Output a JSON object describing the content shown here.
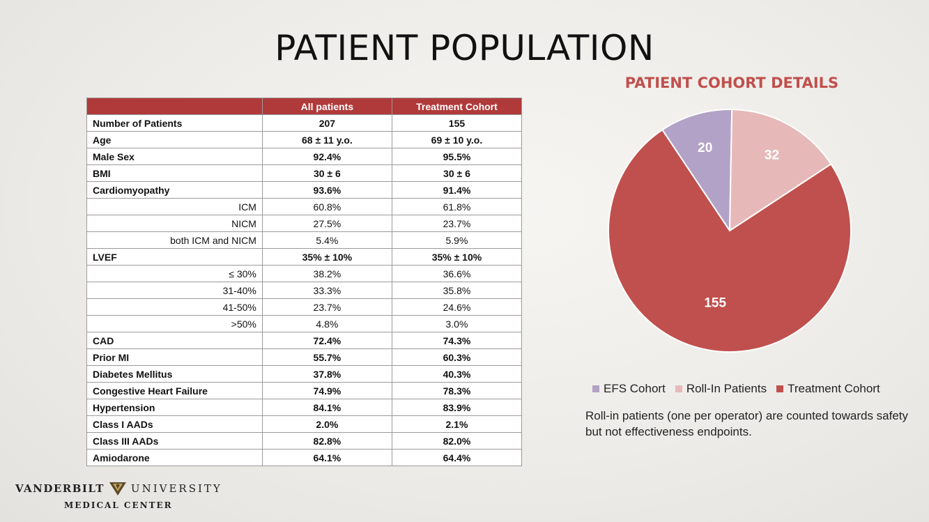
{
  "title": "PATIENT POPULATION",
  "table": {
    "headers": [
      "",
      "All patients",
      "Treatment Cohort"
    ],
    "rows": [
      {
        "label": "Number of Patients",
        "all": "207",
        "treatment": "155",
        "sub": false
      },
      {
        "label": "Age",
        "all": "68 ± 11 y.o.",
        "treatment": "69 ± 10 y.o.",
        "sub": false
      },
      {
        "label": "Male Sex",
        "all": "92.4%",
        "treatment": "95.5%",
        "sub": false
      },
      {
        "label": "BMI",
        "all": "30 ± 6",
        "treatment": "30 ± 6",
        "sub": false
      },
      {
        "label": "Cardiomyopathy",
        "all": "93.6%",
        "treatment": "91.4%",
        "sub": false
      },
      {
        "label": "ICM",
        "all": "60.8%",
        "treatment": "61.8%",
        "sub": true
      },
      {
        "label": "NICM",
        "all": "27.5%",
        "treatment": "23.7%",
        "sub": true
      },
      {
        "label": "both ICM and NICM",
        "all": "5.4%",
        "treatment": "5.9%",
        "sub": true
      },
      {
        "label": "LVEF",
        "all": "35% ± 10%",
        "treatment": "35% ± 10%",
        "sub": false
      },
      {
        "label": "≤ 30%",
        "all": "38.2%",
        "treatment": "36.6%",
        "sub": true
      },
      {
        "label": "31-40%",
        "all": "33.3%",
        "treatment": "35.8%",
        "sub": true
      },
      {
        "label": "41-50%",
        "all": "23.7%",
        "treatment": "24.6%",
        "sub": true
      },
      {
        "label": ">50%",
        "all": "4.8%",
        "treatment": "3.0%",
        "sub": true
      },
      {
        "label": "CAD",
        "all": "72.4%",
        "treatment": "74.3%",
        "sub": false
      },
      {
        "label": "Prior MI",
        "all": "55.7%",
        "treatment": "60.3%",
        "sub": false
      },
      {
        "label": "Diabetes Mellitus",
        "all": "37.8%",
        "treatment": "40.3%",
        "sub": false
      },
      {
        "label": "Congestive Heart Failure",
        "all": "74.9%",
        "treatment": "78.3%",
        "sub": false
      },
      {
        "label": "Hypertension",
        "all": "84.1%",
        "treatment": "83.9%",
        "sub": false
      },
      {
        "label": "Class I AADs",
        "all": "2.0%",
        "treatment": "2.1%",
        "sub": false
      },
      {
        "label": "Class III AADs",
        "all": "82.8%",
        "treatment": "82.0%",
        "sub": false
      },
      {
        "label": "Amiodarone",
        "all": "64.1%",
        "treatment": "64.4%",
        "sub": false
      }
    ]
  },
  "chart_data": {
    "type": "pie",
    "title": "PATIENT COHORT DETAILS",
    "categories": [
      "EFS Cohort",
      "Roll-In Patients",
      "Treatment Cohort"
    ],
    "values": [
      20,
      32,
      155
    ],
    "colors": [
      "#b3a2c7",
      "#e6b9b8",
      "#c0504d"
    ],
    "legend_position": "bottom"
  },
  "note": "Roll-in patients (one per operator) are counted towards safety but not effectiveness endpoints.",
  "logo": {
    "line1_left": "VANDERBILT",
    "line1_right": "UNIVERSITY",
    "line2": "MEDICAL CENTER"
  }
}
